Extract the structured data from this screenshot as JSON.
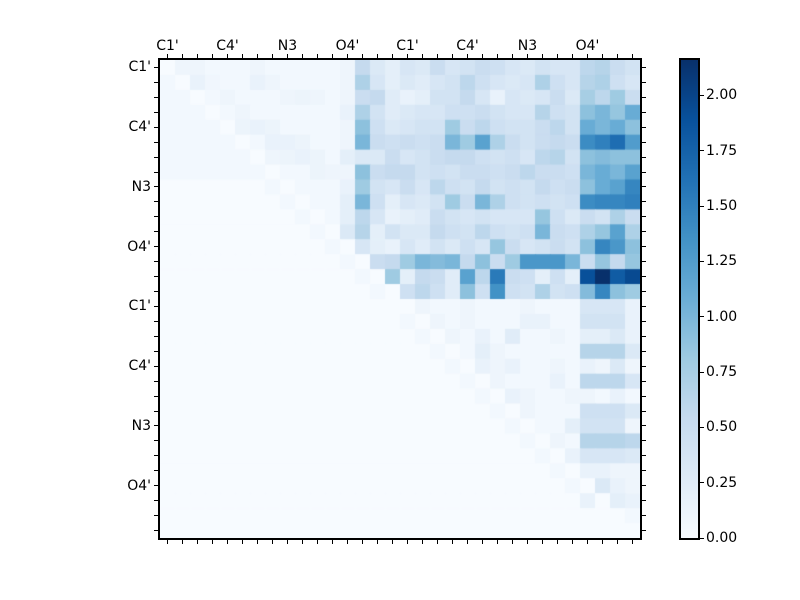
{
  "chart_data": {
    "type": "heatmap",
    "title": "",
    "xlabel": "",
    "ylabel": "",
    "n_rows": 32,
    "n_cols": 32,
    "col_tick_labels": [
      "C1'",
      "C4'",
      "N3",
      "O4'",
      "C1'",
      "C4'",
      "N3",
      "O4'"
    ],
    "col_tick_positions": [
      0,
      4,
      8,
      12,
      16,
      20,
      24,
      28
    ],
    "row_tick_labels": [
      "C1'",
      "C4'",
      "N3",
      "O4'",
      "C1'",
      "C4'",
      "N3",
      "O4'"
    ],
    "row_tick_positions": [
      0,
      4,
      8,
      12,
      16,
      20,
      24,
      28
    ],
    "grid": false,
    "vmin": 0.0,
    "vmax": 2.16,
    "colormap": {
      "name": "Blues",
      "stops": [
        [
          0.0,
          "#f7fbff"
        ],
        [
          0.125,
          "#deebf7"
        ],
        [
          0.25,
          "#c6dbef"
        ],
        [
          0.375,
          "#9ecae1"
        ],
        [
          0.5,
          "#6baed6"
        ],
        [
          0.625,
          "#4292c6"
        ],
        [
          0.75,
          "#2171b5"
        ],
        [
          0.875,
          "#08519c"
        ],
        [
          1.0,
          "#08306b"
        ]
      ]
    },
    "colorbar": {
      "position": "right",
      "tick_labels": [
        "0.00",
        "0.25",
        "0.50",
        "0.75",
        "1.00",
        "1.25",
        "1.50",
        "1.75",
        "2.00"
      ],
      "tick_values": [
        0.0,
        0.25,
        0.5,
        0.75,
        1.0,
        1.25,
        1.5,
        1.75,
        2.0
      ]
    },
    "matrix": [
      [
        0,
        0.1,
        0.1,
        0.05,
        0.05,
        0.05,
        0.1,
        0.05,
        0.05,
        0.05,
        0.05,
        0.05,
        0.1,
        0.55,
        0.3,
        0.2,
        0.35,
        0.3,
        0.5,
        0.35,
        0.4,
        0.5,
        0.45,
        0.35,
        0.3,
        0.4,
        0.35,
        0.35,
        0.6,
        0.65,
        0.5,
        0.4
      ],
      [
        0.05,
        0,
        0.15,
        0.08,
        0.05,
        0.05,
        0.15,
        0.1,
        0.05,
        0.05,
        0.05,
        0.05,
        0.1,
        0.7,
        0.35,
        0.2,
        0.3,
        0.25,
        0.35,
        0.4,
        0.6,
        0.45,
        0.35,
        0.3,
        0.35,
        0.7,
        0.45,
        0.35,
        0.65,
        0.7,
        0.45,
        0.35
      ],
      [
        0.05,
        0.05,
        0,
        0.05,
        0.1,
        0.05,
        0.05,
        0.05,
        0.1,
        0.12,
        0.1,
        0.05,
        0.1,
        0.5,
        0.55,
        0.25,
        0.15,
        0.2,
        0.4,
        0.4,
        0.55,
        0.35,
        0.15,
        0.35,
        0.3,
        0.35,
        0.5,
        0.3,
        0.75,
        0.6,
        0.8,
        0.5
      ],
      [
        0.05,
        0.05,
        0.05,
        0,
        0.05,
        0.1,
        0.05,
        0.05,
        0.05,
        0.05,
        0.05,
        0.05,
        0.15,
        0.7,
        0.4,
        0.25,
        0.3,
        0.35,
        0.35,
        0.45,
        0.45,
        0.5,
        0.4,
        0.35,
        0.35,
        0.65,
        0.45,
        0.4,
        0.9,
        1.0,
        0.85,
        1.1
      ],
      [
        0.05,
        0.05,
        0.05,
        0.05,
        0,
        0.12,
        0.15,
        0.12,
        0.05,
        0.05,
        0.05,
        0.05,
        0.1,
        0.9,
        0.45,
        0.3,
        0.35,
        0.4,
        0.4,
        0.8,
        0.5,
        0.6,
        0.45,
        0.4,
        0.4,
        0.5,
        0.6,
        0.4,
        1.1,
        1.0,
        1.1,
        0.9
      ],
      [
        0.05,
        0.05,
        0.05,
        0.05,
        0.05,
        0,
        0.05,
        0.15,
        0.15,
        0.12,
        0.05,
        0.05,
        0.1,
        1.0,
        0.5,
        0.45,
        0.5,
        0.45,
        0.5,
        1.0,
        0.8,
        1.2,
        0.7,
        0.5,
        0.4,
        0.5,
        0.55,
        0.5,
        1.4,
        1.5,
        1.65,
        1.25
      ],
      [
        0.05,
        0.05,
        0.05,
        0.05,
        0.05,
        0.05,
        0,
        0.1,
        0.12,
        0.15,
        0.12,
        0.05,
        0.2,
        0.3,
        0.3,
        0.5,
        0.35,
        0.4,
        0.5,
        0.55,
        0.55,
        0.45,
        0.4,
        0.45,
        0.35,
        0.6,
        0.65,
        0.4,
        0.9,
        0.95,
        0.9,
        0.9
      ],
      [
        0.05,
        0.05,
        0.05,
        0.05,
        0.05,
        0.05,
        0.05,
        0,
        0.05,
        0.05,
        0.12,
        0.1,
        0.1,
        0.9,
        0.5,
        0.55,
        0.55,
        0.4,
        0.45,
        0.4,
        0.5,
        0.5,
        0.45,
        0.5,
        0.6,
        0.5,
        0.5,
        0.45,
        1.0,
        1.1,
        1.0,
        1.2
      ],
      [
        0,
        0,
        0,
        0,
        0,
        0,
        0,
        0.05,
        0,
        0.05,
        0.05,
        0.05,
        0.15,
        0.8,
        0.4,
        0.35,
        0.5,
        0.35,
        0.6,
        0.45,
        0.4,
        0.55,
        0.4,
        0.45,
        0.4,
        0.55,
        0.45,
        0.5,
        0.9,
        1.1,
        1.2,
        1.45
      ],
      [
        0,
        0,
        0,
        0,
        0,
        0,
        0,
        0,
        0.05,
        0,
        0.05,
        0.05,
        0.2,
        1.0,
        0.45,
        0.2,
        0.35,
        0.3,
        0.4,
        0.8,
        0.5,
        1.0,
        0.7,
        0.45,
        0.4,
        0.45,
        0.4,
        0.45,
        1.4,
        1.45,
        1.45,
        1.5
      ],
      [
        0,
        0,
        0,
        0,
        0,
        0,
        0,
        0,
        0,
        0.05,
        0,
        0.05,
        0.2,
        0.6,
        0.35,
        0.15,
        0.2,
        0.25,
        0.5,
        0.4,
        0.35,
        0.4,
        0.35,
        0.35,
        0.35,
        0.85,
        0.45,
        0.3,
        0.5,
        0.4,
        0.7,
        0.5
      ],
      [
        0,
        0,
        0,
        0,
        0,
        0,
        0,
        0,
        0,
        0,
        0.05,
        0,
        0.3,
        0.65,
        0.2,
        0.4,
        0.3,
        0.3,
        0.55,
        0.45,
        0.4,
        0.6,
        0.45,
        0.4,
        0.45,
        1.0,
        0.5,
        0.45,
        0.7,
        0.85,
        1.2,
        0.7
      ],
      [
        0,
        0,
        0,
        0,
        0,
        0,
        0,
        0,
        0,
        0,
        0,
        0.05,
        0,
        0.35,
        0.2,
        0.15,
        0.35,
        0.25,
        0.4,
        0.3,
        0.45,
        0.35,
        0.85,
        0.5,
        0.35,
        0.4,
        0.5,
        0.4,
        0.9,
        1.45,
        1.3,
        0.9
      ],
      [
        0,
        0,
        0,
        0,
        0,
        0,
        0,
        0,
        0,
        0,
        0,
        0,
        0.05,
        0,
        0.5,
        0.55,
        0.8,
        1.0,
        0.95,
        1.0,
        0.55,
        0.9,
        0.5,
        0.8,
        1.3,
        1.3,
        1.3,
        1.0,
        0.5,
        0.85,
        0.55,
        0.85
      ],
      [
        0,
        0,
        0,
        0,
        0,
        0,
        0,
        0,
        0,
        0,
        0,
        0,
        0,
        0.05,
        0,
        0.8,
        0.2,
        0.55,
        0.5,
        0.25,
        1.2,
        0.6,
        1.55,
        0.5,
        0.45,
        0.2,
        0.45,
        0.2,
        1.9,
        2.16,
        1.8,
        1.95
      ],
      [
        0,
        0,
        0,
        0,
        0,
        0,
        0,
        0,
        0,
        0,
        0,
        0,
        0,
        0,
        0.05,
        0,
        0.45,
        0.6,
        0.45,
        0.25,
        0.9,
        0.45,
        1.35,
        0.45,
        0.4,
        0.7,
        0.4,
        0.45,
        0.95,
        1.45,
        0.9,
        0.8
      ],
      [
        0,
        0,
        0,
        0,
        0,
        0,
        0,
        0,
        0,
        0,
        0,
        0,
        0,
        0,
        0,
        0,
        0,
        0.1,
        0.05,
        0.05,
        0.1,
        0.05,
        0.05,
        0.05,
        0.1,
        0.05,
        0.05,
        0.05,
        0.35,
        0.35,
        0.35,
        0.15
      ],
      [
        0,
        0,
        0,
        0,
        0,
        0,
        0,
        0,
        0,
        0,
        0,
        0,
        0,
        0,
        0,
        0,
        0.05,
        0,
        0.1,
        0.05,
        0.1,
        0.05,
        0.05,
        0.05,
        0.15,
        0.15,
        0.05,
        0.05,
        0.4,
        0.4,
        0.4,
        0.15
      ],
      [
        0,
        0,
        0,
        0,
        0,
        0,
        0,
        0,
        0,
        0,
        0,
        0,
        0,
        0,
        0,
        0,
        0,
        0.05,
        0,
        0.1,
        0.05,
        0.15,
        0.05,
        0.25,
        0.05,
        0.05,
        0.1,
        0.05,
        0.2,
        0.2,
        0.3,
        0.15
      ],
      [
        0,
        0,
        0,
        0,
        0,
        0,
        0,
        0,
        0,
        0,
        0,
        0,
        0,
        0,
        0,
        0,
        0,
        0,
        0.05,
        0,
        0.05,
        0.2,
        0.1,
        0.05,
        0.05,
        0.05,
        0.05,
        0.05,
        0.65,
        0.65,
        0.65,
        0.3
      ],
      [
        0,
        0,
        0,
        0,
        0,
        0,
        0,
        0,
        0,
        0,
        0,
        0,
        0,
        0,
        0,
        0,
        0,
        0,
        0,
        0.05,
        0,
        0.15,
        0.1,
        0.15,
        0.05,
        0.05,
        0.1,
        0.05,
        0.15,
        0.1,
        0.3,
        0.1
      ],
      [
        0,
        0,
        0,
        0,
        0,
        0,
        0,
        0,
        0,
        0,
        0,
        0,
        0,
        0,
        0,
        0,
        0,
        0,
        0,
        0,
        0.05,
        0,
        0.1,
        0.05,
        0.05,
        0.05,
        0.15,
        0.05,
        0.6,
        0.6,
        0.6,
        0.35
      ],
      [
        0,
        0,
        0,
        0,
        0,
        0,
        0,
        0,
        0,
        0,
        0,
        0,
        0,
        0,
        0,
        0,
        0,
        0,
        0,
        0,
        0,
        0.05,
        0,
        0.15,
        0.1,
        0.05,
        0.05,
        0.1,
        0.1,
        0.05,
        0.15,
        0.05
      ],
      [
        0,
        0,
        0,
        0,
        0,
        0,
        0,
        0,
        0,
        0,
        0,
        0,
        0,
        0,
        0,
        0,
        0,
        0,
        0,
        0,
        0,
        0,
        0.05,
        0,
        0.1,
        0.05,
        0.05,
        0.05,
        0.45,
        0.45,
        0.45,
        0.3
      ],
      [
        0,
        0,
        0,
        0,
        0,
        0,
        0,
        0,
        0,
        0,
        0,
        0,
        0,
        0,
        0,
        0,
        0,
        0,
        0,
        0,
        0,
        0,
        0,
        0.05,
        0,
        0.05,
        0.05,
        0.2,
        0.4,
        0.4,
        0.4,
        0.1
      ],
      [
        0,
        0,
        0,
        0,
        0,
        0,
        0,
        0,
        0,
        0,
        0,
        0,
        0,
        0,
        0,
        0,
        0,
        0,
        0,
        0,
        0,
        0,
        0,
        0,
        0.05,
        0,
        0.1,
        0.05,
        0.65,
        0.65,
        0.65,
        0.6
      ],
      [
        0,
        0,
        0,
        0,
        0,
        0,
        0,
        0,
        0,
        0,
        0,
        0,
        0,
        0,
        0,
        0,
        0,
        0,
        0,
        0,
        0,
        0,
        0,
        0,
        0,
        0.05,
        0,
        0.15,
        0.35,
        0.35,
        0.35,
        0.3
      ],
      [
        0,
        0,
        0,
        0,
        0,
        0,
        0,
        0,
        0,
        0,
        0,
        0,
        0,
        0,
        0,
        0,
        0,
        0,
        0,
        0,
        0,
        0,
        0,
        0,
        0,
        0,
        0.05,
        0,
        0.15,
        0.15,
        0.1,
        0.1
      ],
      [
        0,
        0,
        0,
        0,
        0,
        0,
        0,
        0,
        0,
        0,
        0,
        0,
        0,
        0,
        0,
        0,
        0,
        0,
        0,
        0,
        0,
        0,
        0,
        0,
        0,
        0,
        0,
        0.05,
        0,
        0.3,
        0.15,
        0.1
      ],
      [
        0,
        0,
        0,
        0,
        0,
        0,
        0,
        0,
        0,
        0,
        0,
        0,
        0,
        0,
        0,
        0,
        0,
        0,
        0,
        0,
        0,
        0,
        0,
        0,
        0,
        0,
        0,
        0,
        0.15,
        0,
        0.2,
        0.15
      ],
      [
        0,
        0,
        0,
        0,
        0,
        0,
        0,
        0,
        0,
        0,
        0,
        0,
        0,
        0,
        0,
        0,
        0,
        0,
        0,
        0,
        0,
        0,
        0,
        0,
        0,
        0,
        0,
        0,
        0,
        0,
        0,
        0.05
      ],
      [
        0,
        0,
        0,
        0,
        0,
        0,
        0,
        0,
        0,
        0,
        0,
        0,
        0,
        0,
        0,
        0,
        0,
        0,
        0,
        0,
        0,
        0,
        0,
        0,
        0,
        0,
        0,
        0,
        0,
        0,
        0,
        0
      ]
    ]
  },
  "colors": {
    "figure_background": "#ffffff",
    "axis_frame": "#000000",
    "tick_color": "#000000",
    "label_color": "#000000"
  }
}
